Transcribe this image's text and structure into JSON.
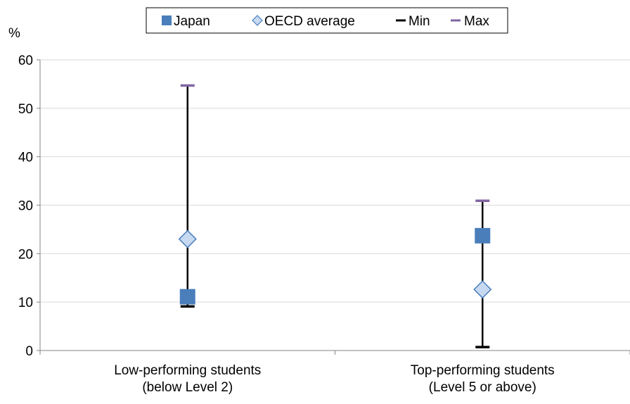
{
  "chart_data": {
    "type": "scatter",
    "ylabel": "%",
    "ylim": [
      0,
      60
    ],
    "yticks": [
      "0",
      "10",
      "20",
      "30",
      "40",
      "50",
      "60"
    ],
    "grid": true,
    "legend_position": "top-center",
    "categories": [
      [
        "Low-performing students",
        "(below Level 2)"
      ],
      [
        "Top-performing students",
        "(Level 5 or above)"
      ]
    ],
    "series": [
      {
        "name": "Japan",
        "marker": "square",
        "values": [
          11.1,
          23.7
        ]
      },
      {
        "name": "OECD average",
        "marker": "diamond",
        "values": [
          23.0,
          12.6
        ]
      },
      {
        "name": "Min",
        "marker": "dash",
        "values": [
          9.1,
          0.7
        ]
      },
      {
        "name": "Max",
        "marker": "dash",
        "values": [
          54.7,
          30.9
        ]
      }
    ],
    "colors": {
      "japan": "#4a7ebb",
      "oecd_fill": "#c6d9f1",
      "oecd_stroke": "#4a7ebb",
      "min": "#000000",
      "max": "#8064a2",
      "range_line": "#000000",
      "grid": "#d9d9d9",
      "axis": "#868686"
    }
  }
}
